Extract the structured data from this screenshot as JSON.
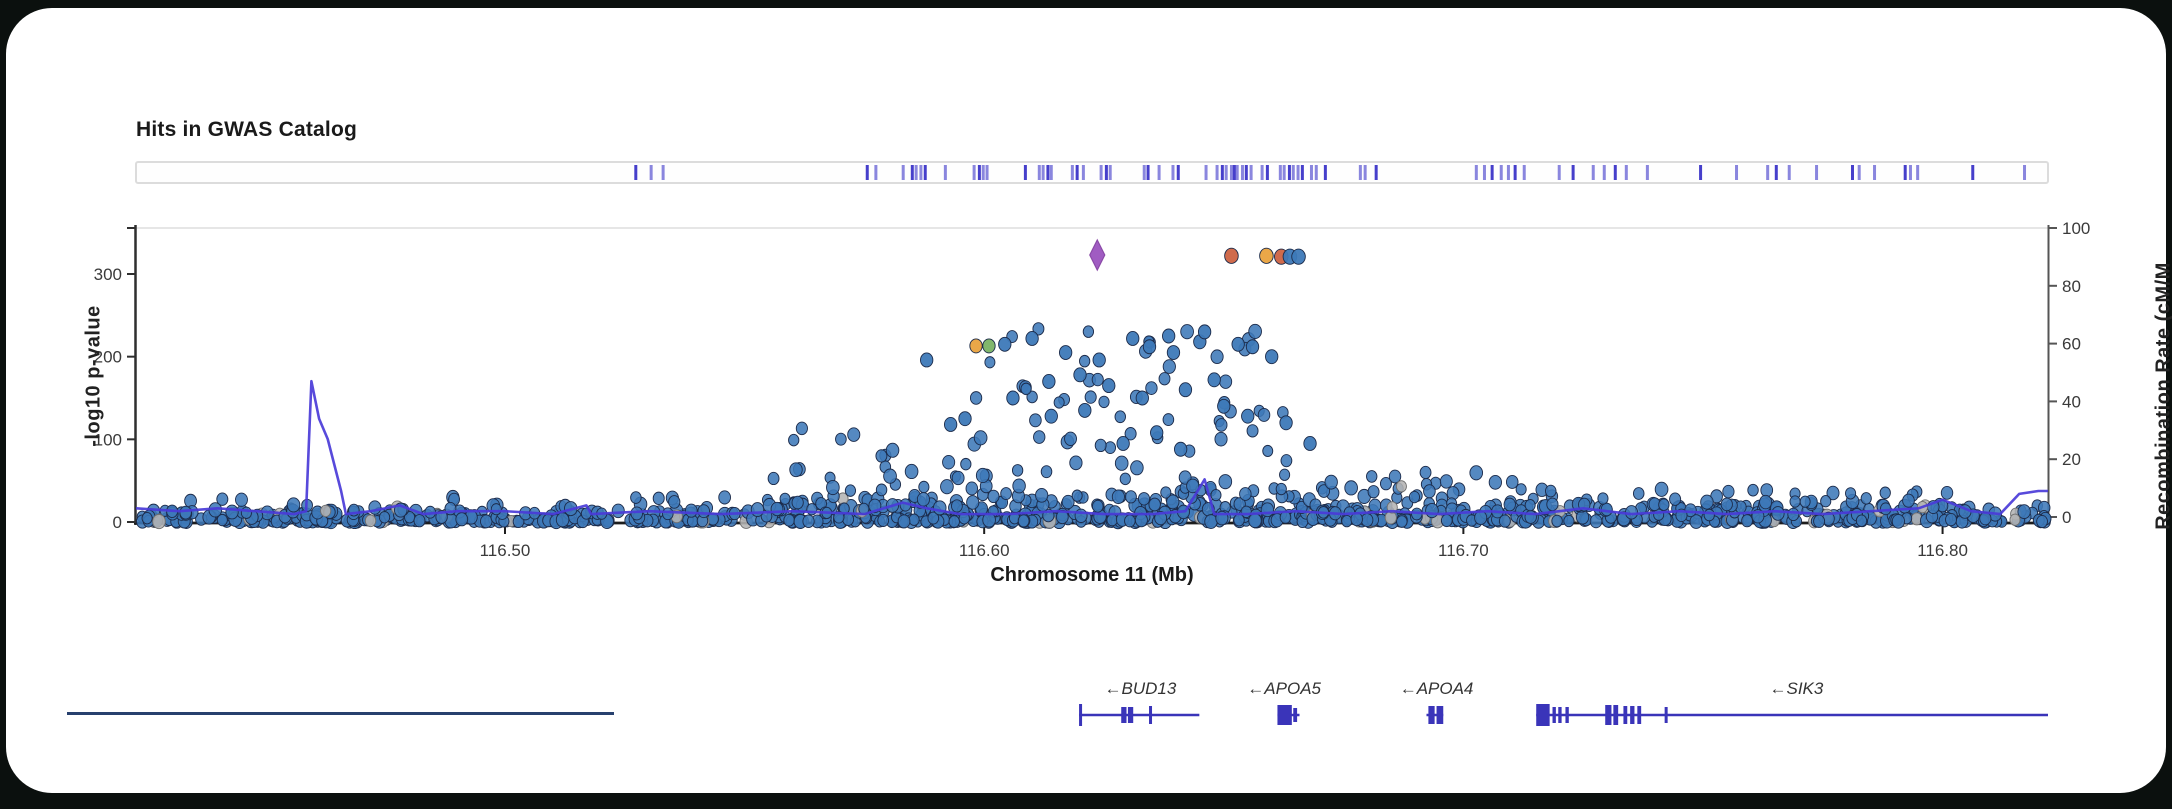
{
  "header": {
    "title": "Hits in GWAS Catalog"
  },
  "colors": {
    "background": "#0b100e",
    "card": "#ffffff",
    "point_blue": "#3d79b8",
    "point_gray": "#b4b4b4",
    "point_stroke": "#1c2b4a",
    "orange": "#e9a23e",
    "redorange": "#cd6342",
    "green": "#7ab364",
    "purple": "#a05cc2",
    "purple_stroke": "#8b4aa8",
    "recomb_line": "#4a3bd8",
    "gwas_tick": "#3c35c8",
    "gene": "#3a34b9",
    "axis": "#2f2f2f",
    "frame_light": "#e6e6e6",
    "tick_text": "#3a3a3a",
    "underline": "#27406e"
  },
  "chart_data": {
    "type": "scatter",
    "title": "Hits in GWAS Catalog",
    "xlabel": "Chromosome 11 (Mb)",
    "ylabel_left": "-log10 p-value",
    "ylabel_right": "Recombination Rate (cM/M",
    "x_range": [
      116.423,
      116.822
    ],
    "y_left_range": [
      0,
      355
    ],
    "y_right_range": [
      0,
      100
    ],
    "x_ticks": [
      116.5,
      116.6,
      116.7,
      116.8
    ],
    "x_tick_labels": [
      "116.50",
      "116.60",
      "116.70",
      "116.80"
    ],
    "y_left_ticks": [
      0,
      100,
      200,
      300
    ],
    "y_right_ticks": [
      0,
      20,
      40,
      60,
      80,
      100
    ],
    "grid": false,
    "legend": "none",
    "gwas_hits_mb": [
      116.5273,
      116.5305,
      116.533,
      116.5756,
      116.5774,
      116.5831,
      116.585,
      116.5858,
      116.5868,
      116.5877,
      116.5919,
      116.5979,
      116.599,
      116.5998,
      116.6006,
      116.6086,
      116.6115,
      116.6123,
      116.6133,
      116.614,
      116.6184,
      116.6194,
      116.6207,
      116.6244,
      116.6255,
      116.6263,
      116.6334,
      116.6342,
      116.6365,
      116.6394,
      116.6405,
      116.6463,
      116.6486,
      116.6497,
      116.6505,
      116.6516,
      116.6522,
      116.6528,
      116.6539,
      116.6547,
      116.6557,
      116.658,
      116.6591,
      116.6618,
      116.6626,
      116.6637,
      116.6645,
      116.6655,
      116.6664,
      116.6683,
      116.6693,
      116.6712,
      116.6785,
      116.6795,
      116.6818,
      116.7027,
      116.7044,
      116.706,
      116.7079,
      116.7094,
      116.7108,
      116.7127,
      116.72,
      116.7229,
      116.7271,
      116.7294,
      116.7317,
      116.734,
      116.7384,
      116.7495,
      116.757,
      116.7635,
      116.7653,
      116.768,
      116.7737,
      116.7812,
      116.7826,
      116.7858,
      116.7922,
      116.7933,
      116.7948,
      116.8063,
      116.8171
    ],
    "lead_snp": {
      "mb": 116.6236,
      "p": 323,
      "shape": "diamond",
      "color_key": "purple"
    },
    "highlight_points": [
      {
        "mb": 116.6516,
        "p": 322,
        "color_key": "redorange"
      },
      {
        "mb": 116.6589,
        "p": 322,
        "color_key": "orange"
      },
      {
        "mb": 116.662,
        "p": 321,
        "color_key": "redorange"
      },
      {
        "mb": 116.6638,
        "p": 321,
        "color_key": "blue"
      },
      {
        "mb": 116.6656,
        "p": 321,
        "color_key": "blue"
      },
      {
        "mb": 116.5983,
        "p": 213,
        "color_key": "orange"
      },
      {
        "mb": 116.601,
        "p": 213,
        "color_key": "green"
      },
      {
        "mb": 116.588,
        "p": 196,
        "color_key": "blue"
      },
      {
        "mb": 116.6043,
        "p": 215,
        "color_key": "blue"
      },
      {
        "mb": 116.61,
        "p": 222,
        "color_key": "blue"
      },
      {
        "mb": 116.617,
        "p": 205,
        "color_key": "blue"
      },
      {
        "mb": 116.624,
        "p": 196,
        "color_key": "blue"
      },
      {
        "mb": 116.631,
        "p": 222,
        "color_key": "blue"
      },
      {
        "mb": 116.6345,
        "p": 212,
        "color_key": "blue"
      },
      {
        "mb": 116.6385,
        "p": 225,
        "color_key": "blue"
      },
      {
        "mb": 116.6395,
        "p": 205,
        "color_key": "blue"
      },
      {
        "mb": 116.645,
        "p": 218,
        "color_key": "blue"
      },
      {
        "mb": 116.646,
        "p": 230,
        "color_key": "blue"
      },
      {
        "mb": 116.653,
        "p": 215,
        "color_key": "blue"
      },
      {
        "mb": 116.656,
        "p": 212,
        "color_key": "blue"
      },
      {
        "mb": 116.66,
        "p": 200,
        "color_key": "blue"
      },
      {
        "mb": 116.6135,
        "p": 170,
        "color_key": "blue"
      },
      {
        "mb": 116.62,
        "p": 178,
        "color_key": "blue"
      },
      {
        "mb": 116.626,
        "p": 165,
        "color_key": "blue"
      },
      {
        "mb": 116.633,
        "p": 150,
        "color_key": "blue"
      },
      {
        "mb": 116.642,
        "p": 160,
        "color_key": "blue"
      },
      {
        "mb": 116.648,
        "p": 172,
        "color_key": "blue"
      },
      {
        "mb": 116.606,
        "p": 150,
        "color_key": "blue"
      },
      {
        "mb": 116.596,
        "p": 125,
        "color_key": "blue"
      },
      {
        "mb": 116.593,
        "p": 118,
        "color_key": "blue"
      },
      {
        "mb": 116.65,
        "p": 140,
        "color_key": "blue"
      },
      {
        "mb": 116.655,
        "p": 128,
        "color_key": "blue"
      },
      {
        "mb": 116.663,
        "p": 120,
        "color_key": "blue"
      },
      {
        "mb": 116.668,
        "p": 95,
        "color_key": "blue"
      },
      {
        "mb": 116.614,
        "p": 128,
        "color_key": "blue"
      },
      {
        "mb": 116.621,
        "p": 135,
        "color_key": "blue"
      },
      {
        "mb": 116.629,
        "p": 95,
        "color_key": "blue"
      },
      {
        "mb": 116.636,
        "p": 108,
        "color_key": "blue"
      },
      {
        "mb": 116.641,
        "p": 88,
        "color_key": "blue"
      }
    ],
    "scatter_regions": [
      {
        "x": [
          116.424,
          116.55
        ],
        "p": [
          0.5,
          14
        ],
        "pow": 2.0,
        "n": 270,
        "gray": 0.07
      },
      {
        "x": [
          116.43,
          116.55
        ],
        "p": [
          10,
          30
        ],
        "pow": 1.8,
        "n": 55,
        "gray": 0.08
      },
      {
        "x": [
          116.55,
          116.67
        ],
        "p": [
          0.5,
          30
        ],
        "pow": 2.1,
        "n": 340,
        "gray": 0.05
      },
      {
        "x": [
          116.555,
          116.605
        ],
        "p": [
          15,
          120
        ],
        "pow": 2.1,
        "n": 48,
        "gray": 0.04
      },
      {
        "x": [
          116.596,
          116.668
        ],
        "p": [
          30,
          235
        ],
        "pow": 1.7,
        "n": 90,
        "gray": 0.02
      },
      {
        "x": [
          116.665,
          116.712
        ],
        "p": [
          1,
          60
        ],
        "pow": 2.0,
        "n": 85,
        "gray": 0.05
      },
      {
        "x": [
          116.67,
          116.822
        ],
        "p": [
          0.5,
          22
        ],
        "pow": 1.9,
        "n": 340,
        "gray": 0.06
      },
      {
        "x": [
          116.712,
          116.805
        ],
        "p": [
          18,
          40
        ],
        "pow": 1.5,
        "n": 50,
        "gray": 0.05
      }
    ],
    "seed": 1337,
    "recomb_line": [
      [
        116.423,
        3
      ],
      [
        116.432,
        2
      ],
      [
        116.44,
        3
      ],
      [
        116.448,
        2
      ],
      [
        116.456,
        1
      ],
      [
        116.4585,
        2
      ],
      [
        116.4596,
        47
      ],
      [
        116.4612,
        34
      ],
      [
        116.463,
        27
      ],
      [
        116.4658,
        9
      ],
      [
        116.4668,
        1
      ],
      [
        116.472,
        2
      ],
      [
        116.478,
        4
      ],
      [
        116.483,
        1
      ],
      [
        116.49,
        2
      ],
      [
        116.5,
        2
      ],
      [
        116.51,
        1
      ],
      [
        116.517,
        4
      ],
      [
        116.518,
        1
      ],
      [
        116.53,
        2
      ],
      [
        116.545,
        1
      ],
      [
        116.56,
        2
      ],
      [
        116.575,
        1
      ],
      [
        116.583,
        5
      ],
      [
        116.588,
        3
      ],
      [
        116.595,
        1
      ],
      [
        116.605,
        1
      ],
      [
        116.615,
        2
      ],
      [
        116.625,
        1
      ],
      [
        116.635,
        1
      ],
      [
        116.642,
        2
      ],
      [
        116.646,
        13
      ],
      [
        116.648,
        1
      ],
      [
        116.655,
        1
      ],
      [
        116.665,
        2
      ],
      [
        116.675,
        1
      ],
      [
        116.685,
        2
      ],
      [
        116.695,
        1
      ],
      [
        116.705,
        2
      ],
      [
        116.715,
        1
      ],
      [
        116.725,
        3
      ],
      [
        116.735,
        1
      ],
      [
        116.745,
        2
      ],
      [
        116.755,
        1
      ],
      [
        116.765,
        2
      ],
      [
        116.775,
        1
      ],
      [
        116.785,
        2
      ],
      [
        116.795,
        3
      ],
      [
        116.8,
        6
      ],
      [
        116.806,
        2
      ],
      [
        116.812,
        1
      ],
      [
        116.816,
        8
      ],
      [
        116.82,
        9
      ],
      [
        116.822,
        9
      ]
    ],
    "genes": [
      {
        "name": "BUD13",
        "label": "←BUD13",
        "strand": "-",
        "start": 116.6198,
        "end": 116.6449,
        "label_mb": 116.6326,
        "features": [
          [
            116.6198,
            0.0006,
            22
          ],
          [
            116.6286,
            0.0011,
            16
          ],
          [
            116.63,
            0.0011,
            16
          ],
          [
            116.6344,
            0.0006,
            18
          ]
        ]
      },
      {
        "name": "APOA5",
        "label": "←APOA5",
        "strand": "-",
        "start": 116.6612,
        "end": 116.6658,
        "label_mb": 116.6626,
        "features": [
          [
            116.6612,
            0.003,
            20
          ],
          [
            116.6645,
            0.0008,
            14
          ]
        ]
      },
      {
        "name": "APOA4",
        "label": "←APOA4",
        "strand": "-",
        "start": 116.6923,
        "end": 116.6958,
        "label_mb": 116.6944,
        "features": [
          [
            116.6927,
            0.0013,
            18
          ],
          [
            116.6944,
            0.0014,
            18
          ]
        ]
      },
      {
        "name": "SIK3",
        "label": "←SIK3",
        "strand": "-",
        "start": 116.7152,
        "end": 116.8227,
        "label_mb": 116.7695,
        "features": [
          [
            116.7152,
            0.0028,
            22
          ],
          [
            116.7186,
            0.0007,
            16
          ],
          [
            116.7198,
            0.0007,
            16
          ],
          [
            116.7213,
            0.0007,
            16
          ],
          [
            116.7296,
            0.0013,
            20
          ],
          [
            116.7313,
            0.001,
            20
          ],
          [
            116.7334,
            0.0008,
            18
          ],
          [
            116.7348,
            0.0009,
            18
          ],
          [
            116.7363,
            0.0008,
            18
          ],
          [
            116.742,
            0.0005,
            16
          ]
        ]
      }
    ]
  }
}
